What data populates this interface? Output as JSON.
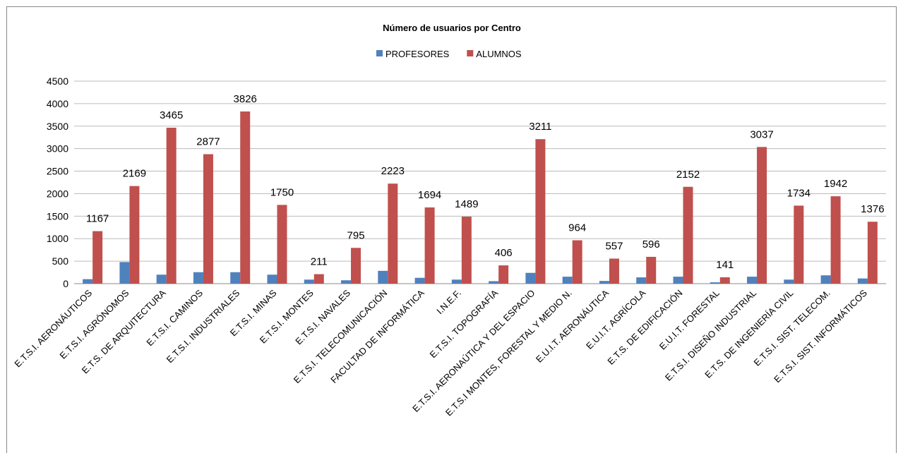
{
  "chart_data": {
    "type": "bar",
    "title": "Número de usuarios por Centro",
    "categories": [
      "E.T.S.I. AERONÁUTICOS",
      "E.T.S.I. AGRÓNOMOS",
      "E.T.S. DE ARQUITECTURA",
      "E.T.S.I. CAMINOS",
      "E.T.S.I. INDUSTRIALES",
      "E.T.S.I. MINAS",
      "E.T.S.I. MONTES",
      "E.T.S.I. NAVALES",
      "E.T.S.I. TELECOMUNICACIÓN",
      "FACULTAD DE INFORMÁTICA",
      "I.N.E.F.",
      "E.T.S.I. TOPOGRAFÍA",
      "E.T.S.I. AERONAÚTICA Y DEL ESPACIO",
      "E.T.S.I MONTES, FORESTAL Y MEDIO N.",
      "E.U.I.T. AERONÁUTICA",
      "E.U.I.T. AGRÍCOLA",
      "E.T.S. DE EDIFICACIÓN",
      "E.U.I.T. FORESTAL",
      "E.T.S.I. DISEÑO INDUSTRIAL",
      "E.T.S. DE INGENIERÍA CIVIL",
      "E.T.S.I. SIST. TELECOM.",
      "E.T.S.I. SIST. INFORMÁTICOS"
    ],
    "series": [
      {
        "name": "PROFESORES",
        "color": "#4f81bd",
        "values": [
          100,
          480,
          200,
          255,
          255,
          200,
          90,
          75,
          285,
          130,
          90,
          55,
          240,
          155,
          60,
          140,
          155,
          30,
          155,
          90,
          185,
          115
        ],
        "data_labels": false
      },
      {
        "name": "ALUMNOS",
        "color": "#c0504d",
        "values": [
          1167,
          2169,
          3465,
          2877,
          3826,
          1750,
          211,
          795,
          2223,
          1694,
          1489,
          406,
          3211,
          964,
          557,
          596,
          2152,
          141,
          3037,
          1734,
          1942,
          1376
        ],
        "data_labels": true
      }
    ],
    "ylim": [
      0,
      4500
    ],
    "yticks": [
      0,
      500,
      1000,
      1500,
      2000,
      2500,
      3000,
      3500,
      4000,
      4500
    ],
    "grid": true,
    "legend": "top"
  }
}
